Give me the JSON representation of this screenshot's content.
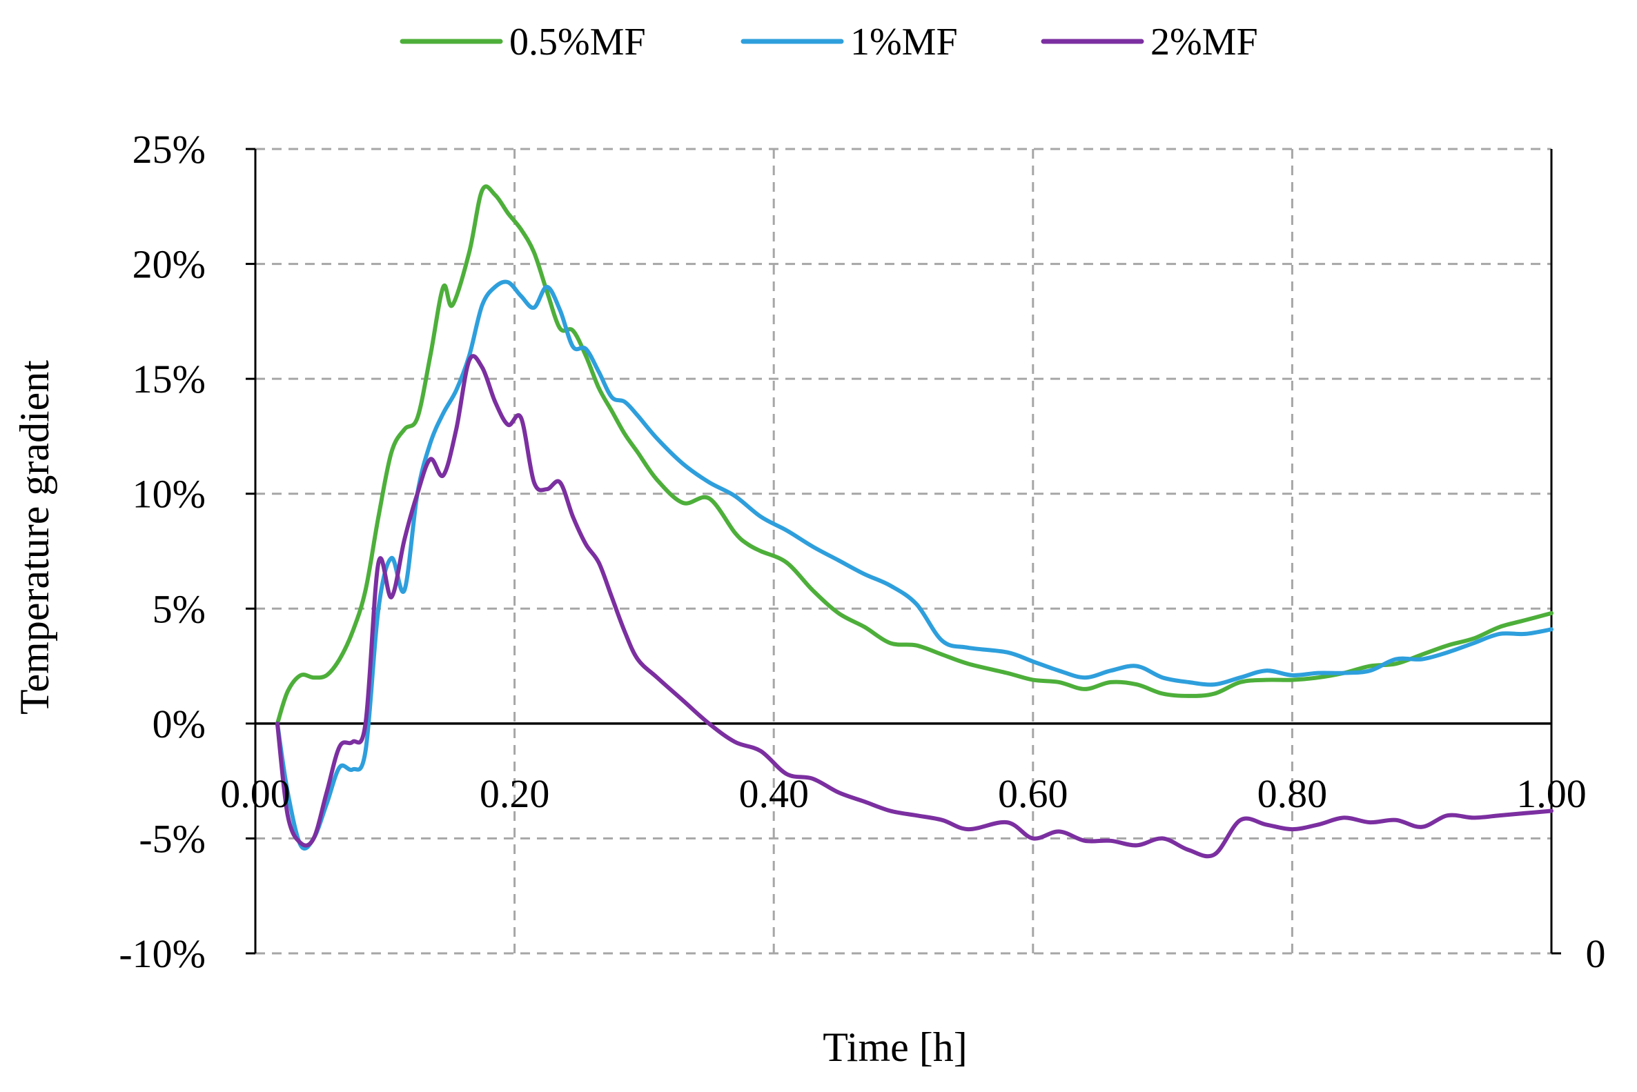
{
  "legend": {
    "items": [
      {
        "label": "0.5%MF",
        "color": "#4daf3a"
      },
      {
        "label": "1%MF",
        "color": "#2e9fdc"
      },
      {
        "label": "2%MF",
        "color": "#7b2fa0"
      }
    ]
  },
  "chart_data": {
    "type": "line",
    "title": "",
    "xlabel": "Time [h]",
    "ylabel": "Temperature gradient",
    "xlim": [
      0,
      1
    ],
    "ylim": [
      -0.1,
      0.25
    ],
    "grid": true,
    "legend_position": "top",
    "x_ticks": [
      "0.00",
      "0.20",
      "0.40",
      "0.60",
      "0.80",
      "1.00"
    ],
    "y_ticks": [
      "25%",
      "20%",
      "15%",
      "10%",
      "5%",
      "0%",
      "-5%",
      "-10%"
    ],
    "secondary_y_tick": "0",
    "series": [
      {
        "name": "0.5%MF",
        "color": "#4daf3a",
        "x": [
          0.017,
          0.025,
          0.035,
          0.045,
          0.055,
          0.065,
          0.075,
          0.085,
          0.095,
          0.105,
          0.115,
          0.125,
          0.135,
          0.145,
          0.152,
          0.165,
          0.175,
          0.185,
          0.195,
          0.205,
          0.215,
          0.225,
          0.235,
          0.245,
          0.255,
          0.265,
          0.275,
          0.285,
          0.295,
          0.31,
          0.33,
          0.35,
          0.37,
          0.38,
          0.39,
          0.41,
          0.43,
          0.45,
          0.47,
          0.49,
          0.51,
          0.53,
          0.55,
          0.58,
          0.6,
          0.62,
          0.64,
          0.66,
          0.68,
          0.7,
          0.72,
          0.74,
          0.76,
          0.78,
          0.8,
          0.82,
          0.84,
          0.86,
          0.88,
          0.9,
          0.92,
          0.94,
          0.96,
          0.98,
          1.0
        ],
        "y": [
          0.0,
          0.014,
          0.021,
          0.02,
          0.021,
          0.028,
          0.04,
          0.058,
          0.09,
          0.118,
          0.128,
          0.133,
          0.16,
          0.19,
          0.182,
          0.205,
          0.232,
          0.23,
          0.222,
          0.215,
          0.205,
          0.188,
          0.172,
          0.171,
          0.16,
          0.146,
          0.136,
          0.126,
          0.118,
          0.106,
          0.096,
          0.098,
          0.083,
          0.078,
          0.075,
          0.07,
          0.058,
          0.048,
          0.042,
          0.035,
          0.034,
          0.03,
          0.026,
          0.022,
          0.019,
          0.018,
          0.015,
          0.018,
          0.017,
          0.013,
          0.012,
          0.013,
          0.018,
          0.019,
          0.019,
          0.02,
          0.022,
          0.025,
          0.026,
          0.03,
          0.034,
          0.037,
          0.042,
          0.045,
          0.048
        ]
      },
      {
        "name": "1%MF",
        "color": "#2e9fdc",
        "x": [
          0.017,
          0.025,
          0.035,
          0.045,
          0.055,
          0.065,
          0.075,
          0.085,
          0.095,
          0.105,
          0.115,
          0.125,
          0.135,
          0.145,
          0.155,
          0.165,
          0.175,
          0.185,
          0.195,
          0.205,
          0.215,
          0.225,
          0.235,
          0.245,
          0.255,
          0.265,
          0.275,
          0.285,
          0.295,
          0.31,
          0.33,
          0.35,
          0.37,
          0.39,
          0.41,
          0.43,
          0.45,
          0.47,
          0.49,
          0.51,
          0.53,
          0.55,
          0.58,
          0.6,
          0.62,
          0.64,
          0.66,
          0.68,
          0.7,
          0.72,
          0.74,
          0.76,
          0.78,
          0.8,
          0.82,
          0.84,
          0.86,
          0.88,
          0.9,
          0.92,
          0.94,
          0.96,
          0.98,
          1.0
        ],
        "y": [
          0.0,
          -0.03,
          -0.053,
          -0.05,
          -0.035,
          -0.019,
          -0.02,
          -0.012,
          0.05,
          0.072,
          0.058,
          0.1,
          0.122,
          0.135,
          0.145,
          0.16,
          0.182,
          0.19,
          0.192,
          0.186,
          0.181,
          0.19,
          0.18,
          0.164,
          0.163,
          0.153,
          0.142,
          0.14,
          0.134,
          0.124,
          0.113,
          0.105,
          0.099,
          0.09,
          0.084,
          0.077,
          0.071,
          0.065,
          0.06,
          0.052,
          0.036,
          0.033,
          0.031,
          0.027,
          0.023,
          0.02,
          0.023,
          0.025,
          0.02,
          0.018,
          0.017,
          0.02,
          0.023,
          0.021,
          0.022,
          0.022,
          0.023,
          0.028,
          0.028,
          0.031,
          0.035,
          0.039,
          0.039,
          0.041
        ]
      },
      {
        "name": "2%MF",
        "color": "#7b2fa0",
        "x": [
          0.017,
          0.025,
          0.035,
          0.045,
          0.055,
          0.065,
          0.075,
          0.085,
          0.095,
          0.105,
          0.115,
          0.125,
          0.135,
          0.145,
          0.155,
          0.165,
          0.175,
          0.185,
          0.195,
          0.205,
          0.215,
          0.225,
          0.235,
          0.245,
          0.255,
          0.265,
          0.275,
          0.285,
          0.295,
          0.31,
          0.33,
          0.35,
          0.37,
          0.39,
          0.41,
          0.43,
          0.45,
          0.47,
          0.49,
          0.51,
          0.53,
          0.55,
          0.58,
          0.6,
          0.62,
          0.64,
          0.66,
          0.68,
          0.7,
          0.72,
          0.74,
          0.76,
          0.78,
          0.8,
          0.82,
          0.84,
          0.86,
          0.88,
          0.9,
          0.92,
          0.94,
          0.96,
          0.98,
          1.0
        ],
        "y": [
          0.0,
          -0.04,
          -0.052,
          -0.05,
          -0.03,
          -0.01,
          -0.008,
          0.0,
          0.07,
          0.055,
          0.08,
          0.1,
          0.115,
          0.108,
          0.128,
          0.158,
          0.155,
          0.14,
          0.13,
          0.133,
          0.105,
          0.102,
          0.105,
          0.09,
          0.078,
          0.07,
          0.055,
          0.04,
          0.028,
          0.02,
          0.01,
          0.0,
          -0.008,
          -0.012,
          -0.022,
          -0.024,
          -0.03,
          -0.034,
          -0.038,
          -0.04,
          -0.042,
          -0.046,
          -0.043,
          -0.05,
          -0.047,
          -0.051,
          -0.051,
          -0.053,
          -0.05,
          -0.055,
          -0.057,
          -0.042,
          -0.044,
          -0.046,
          -0.044,
          -0.041,
          -0.043,
          -0.042,
          -0.045,
          -0.04,
          -0.041,
          -0.04,
          -0.039,
          -0.038
        ]
      }
    ]
  }
}
